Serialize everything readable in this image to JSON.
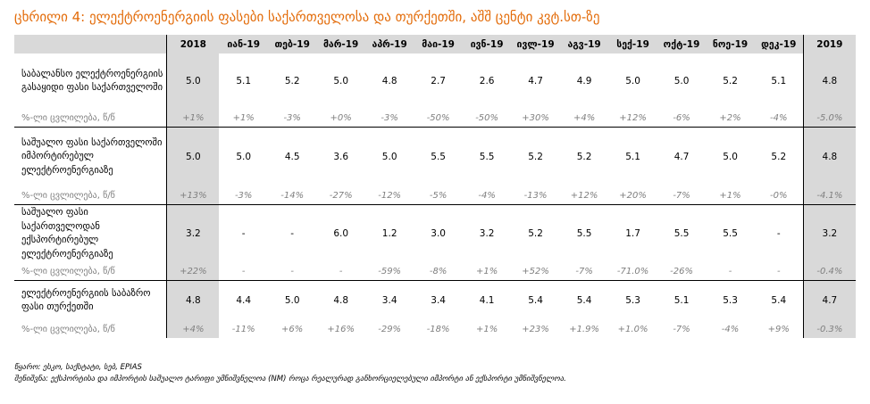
{
  "title": "ცხრილი 4: ელექტროენერგიის ფასები საქართველოსა და თურქეთში, აშშ ცენტი კვტ.სთ-ზე",
  "columns": [
    "2018",
    "იან-19",
    "თებ-19",
    "მარ-19",
    "აპრ-19",
    "მაი-19",
    "ივნ-19",
    "ივლ-19",
    "აგვ-19",
    "სექ-19",
    "ოქტ-19",
    "ნოე-19",
    "დეკ-19",
    "2019"
  ],
  "rows": [
    {
      "label": "საბალანსო ელექტროენერგიის გასაყიდი ფასი საქართველოში",
      "values": [
        "5.0",
        "5.1",
        "5.2",
        "5.0",
        "4.8",
        "2.7",
        "2.6",
        "4.7",
        "4.9",
        "5.0",
        "5.0",
        "5.2",
        "5.1",
        "4.8"
      ],
      "pct_label": "%-ლი ცვლილება, წ/წ",
      "pct": [
        "+1%",
        "+1%",
        "-3%",
        "+0%",
        "-3%",
        "-50%",
        "-50%",
        "+30%",
        "+4%",
        "+12%",
        "-6%",
        "+2%",
        "-4%",
        "-5.0%"
      ]
    },
    {
      "label": "საშუალო ფასი საქართველოში იმპორტირებულ ელექტროენერგიაზე",
      "values": [
        "5.0",
        "5.0",
        "4.5",
        "3.6",
        "5.0",
        "5.5",
        "5.5",
        "5.2",
        "5.2",
        "5.1",
        "4.7",
        "5.0",
        "5.2",
        "4.8"
      ],
      "pct_label": "%-ლი ცვლილება, წ/წ",
      "pct": [
        "+13%",
        "-3%",
        "-14%",
        "-27%",
        "-12%",
        "-5%",
        "-4%",
        "-13%",
        "+12%",
        "+20%",
        "-7%",
        "+1%",
        "-0%",
        "-4.1%"
      ]
    },
    {
      "label": "საშუალო ფასი საქართველოდან ექსპორტირებულ ელექტროენერგიაზე",
      "values": [
        "3.2",
        "-",
        "-",
        "6.0",
        "1.2",
        "3.0",
        "3.2",
        "5.2",
        "5.5",
        "1.7",
        "5.5",
        "5.5",
        "-",
        "3.2"
      ],
      "pct_label": "%-ლი ცვლილება, წ/წ",
      "pct": [
        "+22%",
        "-",
        "-",
        "-",
        "-59%",
        "-8%",
        "+1%",
        "+52%",
        "-7%",
        "-71.0%",
        "-26%",
        "-",
        "-",
        "-0.4%"
      ]
    },
    {
      "label": "ელექტროენერგიის საბაზრო ფასი თურქეთში",
      "values": [
        "4.8",
        "4.4",
        "5.0",
        "4.8",
        "3.4",
        "3.4",
        "4.1",
        "5.4",
        "5.4",
        "5.3",
        "5.1",
        "5.3",
        "5.4",
        "4.7"
      ],
      "pct_label": "%-ლი ცვლილება, წ/წ",
      "pct": [
        "+4%",
        "-11%",
        "+6%",
        "+16%",
        "-29%",
        "-18%",
        "+1%",
        "+23%",
        "+1.9%",
        "+1.0%",
        "-7%",
        "-4%",
        "+9%",
        "-0.3%"
      ]
    }
  ],
  "notes": {
    "source": "წყარო: ესკო, საქსტატი, სებ, EPIAS",
    "note": "შენიშვნა: ექსპორტისა და იმპორტის საშუალო ტარიფი უმნიშვნელოა (NM) როცა რეალურად განხორციელებული იმპორტი ან ექსპორტი უმნიშვნელოა."
  }
}
